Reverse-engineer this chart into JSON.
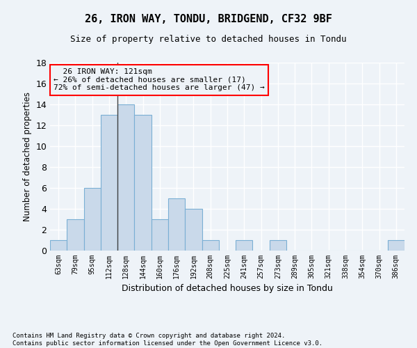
{
  "title1": "26, IRON WAY, TONDU, BRIDGEND, CF32 9BF",
  "title2": "Size of property relative to detached houses in Tondu",
  "xlabel": "Distribution of detached houses by size in Tondu",
  "ylabel": "Number of detached properties",
  "footnote": "Contains HM Land Registry data © Crown copyright and database right 2024.\nContains public sector information licensed under the Open Government Licence v3.0.",
  "bar_color": "#c9d9ea",
  "bar_edge_color": "#7aafd4",
  "categories": [
    "63sqm",
    "79sqm",
    "95sqm",
    "112sqm",
    "128sqm",
    "144sqm",
    "160sqm",
    "176sqm",
    "192sqm",
    "208sqm",
    "225sqm",
    "241sqm",
    "257sqm",
    "273sqm",
    "289sqm",
    "305sqm",
    "321sqm",
    "338sqm",
    "354sqm",
    "370sqm",
    "386sqm"
  ],
  "values": [
    1,
    3,
    6,
    13,
    14,
    13,
    3,
    5,
    4,
    1,
    0,
    1,
    0,
    1,
    0,
    0,
    0,
    0,
    0,
    0,
    1
  ],
  "ylim": [
    0,
    18
  ],
  "yticks": [
    0,
    2,
    4,
    6,
    8,
    10,
    12,
    14,
    16,
    18
  ],
  "annotation_text": "  26 IRON WAY: 121sqm\n← 26% of detached houses are smaller (17)\n72% of semi-detached houses are larger (47) →",
  "bg_color": "#eef3f8",
  "grid_color": "#ffffff",
  "vline_x_index": 3.5
}
